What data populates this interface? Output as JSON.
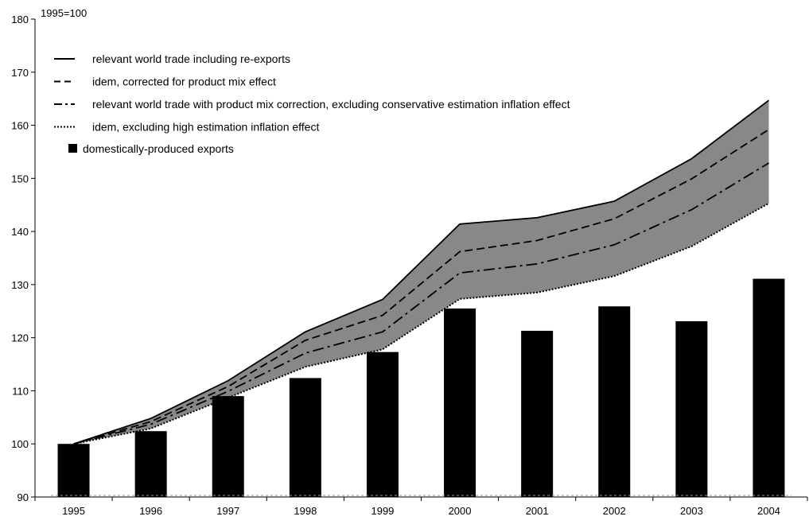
{
  "chart_data": {
    "type": "bar",
    "unit_label": "1995=100",
    "categories": [
      "1995",
      "1996",
      "1997",
      "1998",
      "1999",
      "2000",
      "2001",
      "2002",
      "2003",
      "2004"
    ],
    "ylim": [
      90,
      180
    ],
    "yticks": [
      90,
      100,
      110,
      120,
      130,
      140,
      150,
      160,
      170,
      180
    ],
    "grid": false,
    "legend_position": "top-left",
    "series": [
      {
        "name": "relevant world trade including re-exports",
        "style": "solid",
        "values": [
          100,
          104.8,
          111.9,
          121.1,
          127.2,
          141.4,
          142.6,
          145.7,
          153.7,
          164.7
        ]
      },
      {
        "name": "idem, corrected for product mix effect",
        "style": "dashed",
        "values": [
          100,
          104.2,
          110.8,
          119.5,
          124.2,
          136.2,
          138.3,
          142.4,
          149.9,
          159.2
        ]
      },
      {
        "name": "relevant world trade with product mix correction, excluding conservative estimation inflation effect",
        "style": "dashdot",
        "values": [
          100,
          103.7,
          109.9,
          117.1,
          121.1,
          132.2,
          133.9,
          137.5,
          144.1,
          152.9
        ]
      },
      {
        "name": "idem, excluding high estimation inflation effect",
        "style": "dotted",
        "values": [
          100,
          102.9,
          108.7,
          114.5,
          117.8,
          127.3,
          128.5,
          131.6,
          137.2,
          145.3
        ]
      },
      {
        "name": "domestically-produced exports",
        "style": "bar",
        "values": [
          100.0,
          102.4,
          109.0,
          112.4,
          117.3,
          125.5,
          121.3,
          125.9,
          123.1,
          131.1
        ]
      }
    ],
    "colors": {
      "band": "#888888",
      "bar": "#000000",
      "line": "#000000"
    }
  }
}
